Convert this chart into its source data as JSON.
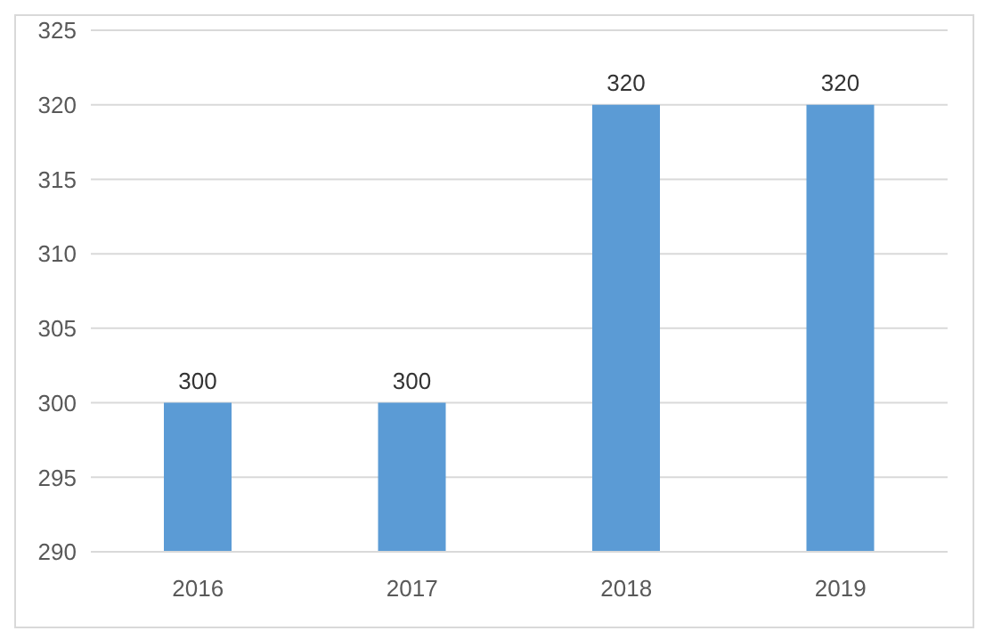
{
  "chart_data": {
    "type": "bar",
    "categories": [
      "2016",
      "2017",
      "2018",
      "2019"
    ],
    "values": [
      300,
      300,
      320,
      320
    ],
    "color": "#5b9bd5",
    "ylim": [
      290,
      325
    ],
    "yticks": [
      290,
      295,
      300,
      305,
      310,
      315,
      320,
      325
    ],
    "grid": "y",
    "data_labels": true,
    "legend": false
  }
}
